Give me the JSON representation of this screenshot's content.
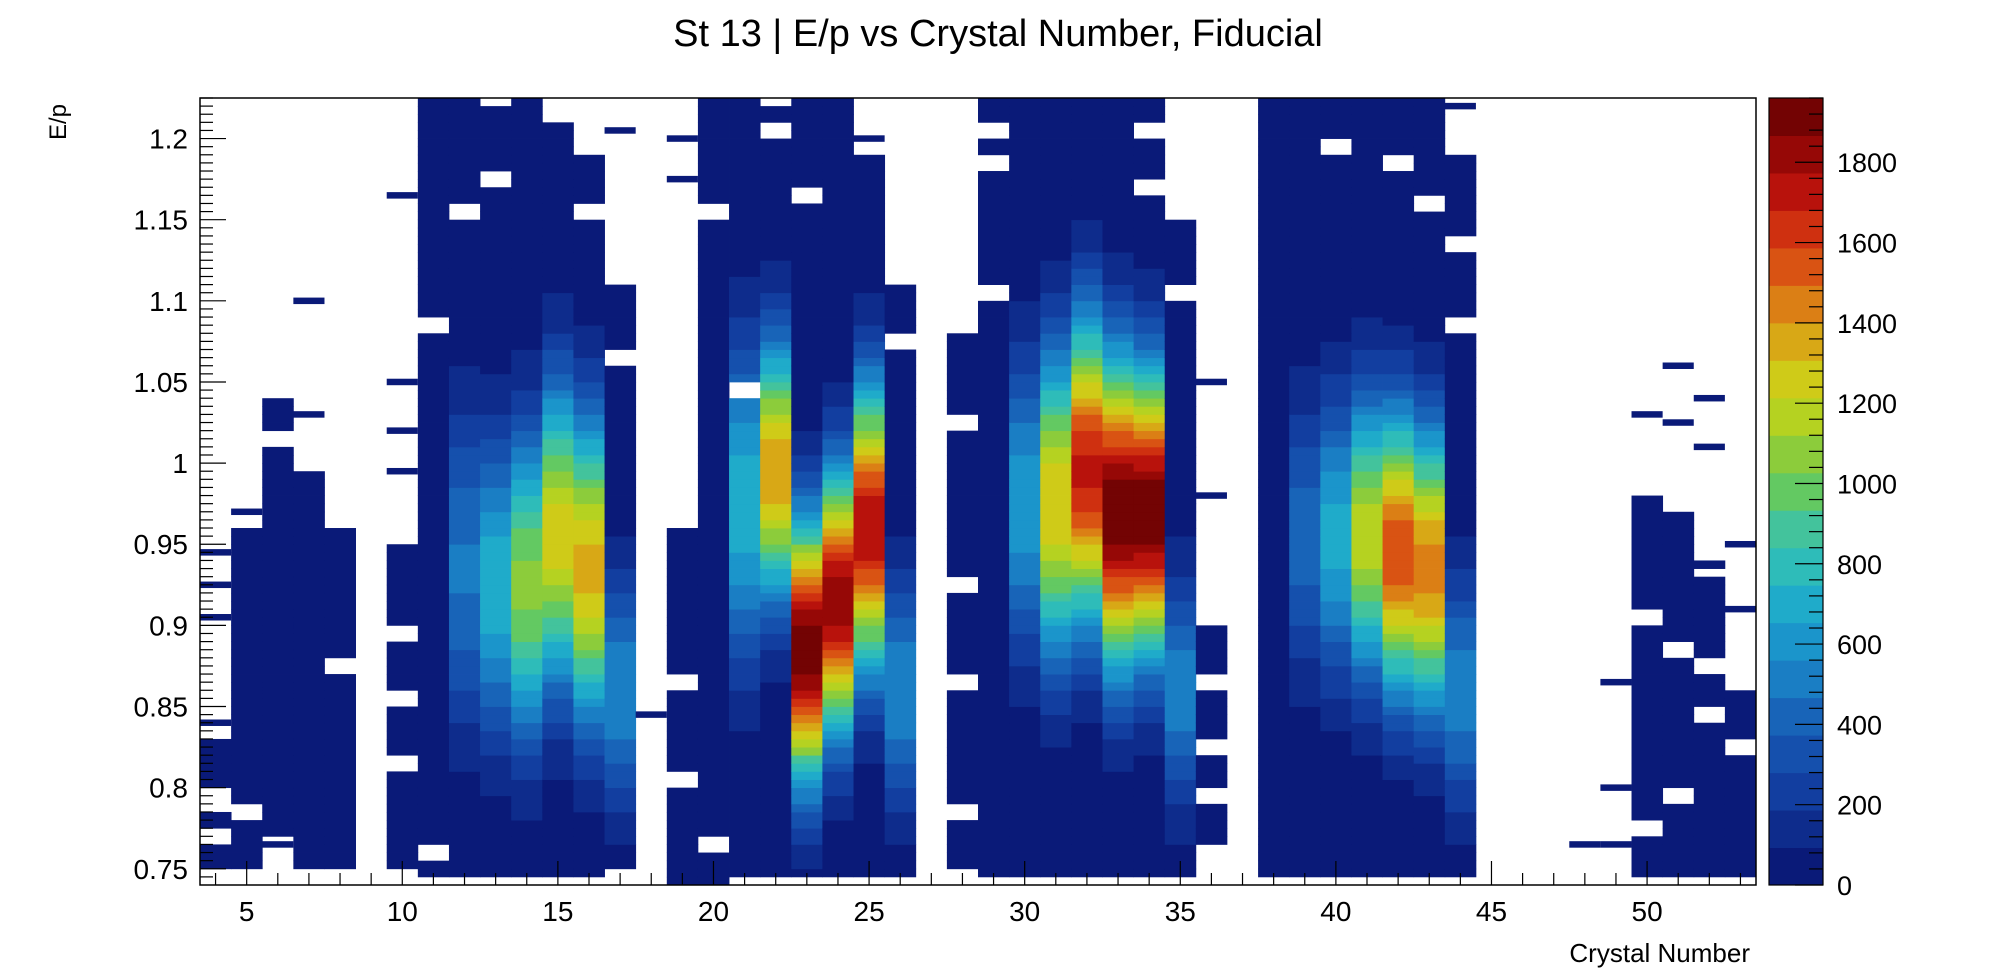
{
  "chart_data": {
    "type": "heatmap",
    "title": "St 13 | E/p vs Crystal Number, Fiducial",
    "xlabel": "Crystal Number",
    "ylabel": "E/p",
    "xlim": [
      3.5,
      53.5
    ],
    "ylim": [
      0.74,
      1.225
    ],
    "x_ticks": [
      5,
      10,
      15,
      20,
      25,
      30,
      35,
      40,
      45,
      50
    ],
    "y_ticks": [
      0.75,
      0.8,
      0.85,
      0.9,
      0.95,
      1,
      1.05,
      1.1,
      1.15,
      1.2
    ],
    "y_tick_labels": [
      "0.75",
      "0.8",
      "0.85",
      "0.9",
      "0.95",
      "1",
      "1.05",
      "1.1",
      "1.15",
      "1.2"
    ],
    "z_range": [
      0,
      1960
    ],
    "z_ticks": [
      0,
      200,
      400,
      600,
      800,
      1000,
      1200,
      1400,
      1600,
      1800
    ],
    "palette": [
      "#0a1a78",
      "#0e2c8c",
      "#123ea0",
      "#1550ad",
      "#1864b8",
      "#1a7ec4",
      "#1b95cb",
      "#1fabca",
      "#2ebcb9",
      "#43c39c",
      "#63c962",
      "#8ccc3b",
      "#b5d221",
      "#cfcb18",
      "#d8a816",
      "#db7f15",
      "#d95313",
      "#cf3010",
      "#b8120c",
      "#960806",
      "#730303"
    ],
    "grid": false,
    "legend": "color scale on right",
    "columns": [
      {
        "x": 4,
        "lo": 0.75,
        "hi": 0.83,
        "gaps": [
          [
            0.785,
            0.8
          ],
          [
            0.765,
            0.775
          ]
        ],
        "ticks": [
          0.84,
          0.905,
          0.925,
          0.945
        ]
      },
      {
        "x": 5,
        "lo": 0.75,
        "hi": 0.96,
        "gaps": [
          [
            0.78,
            0.79
          ]
        ],
        "ticks": [
          0.97
        ]
      },
      {
        "x": 6,
        "lo": 0.77,
        "hi": 1.04,
        "gaps": [
          [
            1.01,
            1.02
          ]
        ],
        "ticks": [
          0.765,
          0.86
        ]
      },
      {
        "x": 7,
        "lo": 0.75,
        "hi": 0.995,
        "gaps": [],
        "ticks": [
          1.1,
          1.03,
          0.9
        ]
      },
      {
        "x": 8,
        "lo": 0.75,
        "hi": 0.96,
        "gaps": [
          [
            0.87,
            0.88
          ]
        ],
        "ticks": []
      },
      {
        "x": 9,
        "lo": 0,
        "hi": 0,
        "gaps": [],
        "ticks": []
      },
      {
        "x": 10,
        "lo": 0.75,
        "hi": 0.95,
        "gaps": [
          [
            0.81,
            0.82
          ],
          [
            0.85,
            0.86
          ],
          [
            0.89,
            0.9
          ]
        ],
        "ticks": [
          1.165,
          1.05,
          1.02,
          0.995
        ]
      },
      {
        "x": 11,
        "lo": 0.745,
        "hi": 1.225,
        "gaps": [
          [
            1.08,
            1.09
          ],
          [
            0.755,
            0.765
          ]
        ],
        "ticks": []
      },
      {
        "x": 12,
        "lo": 0.745,
        "hi": 1.225,
        "gaps": [
          [
            1.15,
            1.16
          ]
        ],
        "ticks": []
      },
      {
        "x": 13,
        "lo": 0.745,
        "hi": 1.22,
        "gaps": [
          [
            1.17,
            1.18
          ]
        ],
        "ticks": []
      },
      {
        "x": 14,
        "lo": 0.745,
        "hi": 1.225,
        "gaps": [],
        "ticks": []
      },
      {
        "x": 15,
        "lo": 0.745,
        "hi": 1.21,
        "gaps": [],
        "ticks": []
      },
      {
        "x": 16,
        "lo": 0.745,
        "hi": 1.19,
        "gaps": [
          [
            1.15,
            1.16
          ]
        ],
        "ticks": []
      },
      {
        "x": 17,
        "lo": 0.75,
        "hi": 1.11,
        "gaps": [
          [
            1.06,
            1.07
          ]
        ],
        "ticks": [
          1.205
        ]
      },
      {
        "x": 18,
        "lo": 0,
        "hi": 0,
        "gaps": [],
        "ticks": [
          0.845
        ]
      },
      {
        "x": 19,
        "lo": 0.74,
        "hi": 0.96,
        "gaps": [
          [
            0.8,
            0.81
          ],
          [
            0.86,
            0.87
          ]
        ],
        "ticks": [
          1.2,
          1.175
        ]
      },
      {
        "x": 20,
        "lo": 0.74,
        "hi": 1.225,
        "gaps": [
          [
            1.15,
            1.16
          ],
          [
            0.76,
            0.77
          ]
        ],
        "ticks": []
      },
      {
        "x": 21,
        "lo": 0.745,
        "hi": 1.225,
        "gaps": [
          [
            1.04,
            1.05
          ]
        ],
        "ticks": []
      },
      {
        "x": 22,
        "lo": 0.745,
        "hi": 1.22,
        "gaps": [
          [
            1.2,
            1.21
          ]
        ],
        "ticks": []
      },
      {
        "x": 23,
        "lo": 0.745,
        "hi": 1.225,
        "gaps": [
          [
            1.16,
            1.17
          ]
        ],
        "ticks": []
      },
      {
        "x": 24,
        "lo": 0.745,
        "hi": 1.225,
        "gaps": [],
        "ticks": []
      },
      {
        "x": 25,
        "lo": 0.745,
        "hi": 1.19,
        "gaps": [],
        "ticks": [
          1.2
        ]
      },
      {
        "x": 26,
        "lo": 0.745,
        "hi": 1.11,
        "gaps": [
          [
            1.07,
            1.08
          ]
        ],
        "ticks": []
      },
      {
        "x": 27,
        "lo": 0,
        "hi": 0,
        "gaps": [],
        "ticks": []
      },
      {
        "x": 28,
        "lo": 0.75,
        "hi": 1.08,
        "gaps": [
          [
            0.78,
            0.79
          ],
          [
            0.86,
            0.87
          ],
          [
            0.92,
            0.93
          ],
          [
            1.02,
            1.03
          ]
        ],
        "ticks": []
      },
      {
        "x": 29,
        "lo": 0.745,
        "hi": 1.225,
        "gaps": [
          [
            1.2,
            1.21
          ],
          [
            1.18,
            1.19
          ],
          [
            1.1,
            1.11
          ]
        ],
        "ticks": []
      },
      {
        "x": 30,
        "lo": 0.745,
        "hi": 1.225,
        "gaps": [],
        "ticks": []
      },
      {
        "x": 31,
        "lo": 0.745,
        "hi": 1.225,
        "gaps": [],
        "ticks": []
      },
      {
        "x": 32,
        "lo": 0.745,
        "hi": 1.225,
        "gaps": [],
        "ticks": []
      },
      {
        "x": 33,
        "lo": 0.745,
        "hi": 1.225,
        "gaps": [],
        "ticks": []
      },
      {
        "x": 34,
        "lo": 0.745,
        "hi": 1.225,
        "gaps": [
          [
            1.2,
            1.21
          ],
          [
            1.165,
            1.175
          ]
        ],
        "ticks": []
      },
      {
        "x": 35,
        "lo": 0.745,
        "hi": 1.15,
        "gaps": [
          [
            1.1,
            1.11
          ]
        ],
        "ticks": []
      },
      {
        "x": 36,
        "lo": 0.765,
        "hi": 0.9,
        "gaps": [
          [
            0.79,
            0.8
          ],
          [
            0.82,
            0.83
          ],
          [
            0.86,
            0.87
          ]
        ],
        "ticks": [
          1.05,
          0.98
        ]
      },
      {
        "x": 37,
        "lo": 0,
        "hi": 0,
        "gaps": [],
        "ticks": []
      },
      {
        "x": 38,
        "lo": 0.745,
        "hi": 1.225,
        "gaps": [],
        "ticks": []
      },
      {
        "x": 39,
        "lo": 0.745,
        "hi": 1.225,
        "gaps": [],
        "ticks": []
      },
      {
        "x": 40,
        "lo": 0.745,
        "hi": 1.225,
        "gaps": [
          [
            1.19,
            1.2
          ]
        ],
        "ticks": []
      },
      {
        "x": 41,
        "lo": 0.745,
        "hi": 1.225,
        "gaps": [],
        "ticks": []
      },
      {
        "x": 42,
        "lo": 0.745,
        "hi": 1.225,
        "gaps": [
          [
            1.18,
            1.19
          ]
        ],
        "ticks": []
      },
      {
        "x": 43,
        "lo": 0.745,
        "hi": 1.225,
        "gaps": [
          [
            1.155,
            1.165
          ]
        ],
        "ticks": []
      },
      {
        "x": 44,
        "lo": 0.745,
        "hi": 1.19,
        "gaps": [
          [
            1.13,
            1.14
          ],
          [
            1.08,
            1.09
          ]
        ],
        "ticks": [
          1.22
        ]
      },
      {
        "x": 45,
        "lo": 0,
        "hi": 0,
        "gaps": [],
        "ticks": []
      },
      {
        "x": 46,
        "lo": 0,
        "hi": 0,
        "gaps": [],
        "ticks": []
      },
      {
        "x": 47,
        "lo": 0,
        "hi": 0,
        "gaps": [],
        "ticks": []
      },
      {
        "x": 48,
        "lo": 0,
        "hi": 0,
        "gaps": [],
        "ticks": [
          0.765
        ]
      },
      {
        "x": 49,
        "lo": 0,
        "hi": 0,
        "gaps": [],
        "ticks": [
          0.865,
          0.8,
          0.765
        ]
      },
      {
        "x": 50,
        "lo": 0.745,
        "hi": 0.98,
        "gaps": [
          [
            0.77,
            0.78
          ],
          [
            0.9,
            0.91
          ]
        ],
        "ticks": [
          1.03
        ]
      },
      {
        "x": 51,
        "lo": 0.745,
        "hi": 0.97,
        "gaps": [
          [
            0.79,
            0.8
          ],
          [
            0.88,
            0.89
          ]
        ],
        "ticks": [
          1.06,
          1.025
        ]
      },
      {
        "x": 52,
        "lo": 0.745,
        "hi": 0.94,
        "gaps": [
          [
            0.84,
            0.85
          ],
          [
            0.87,
            0.88
          ],
          [
            0.93,
            0.935
          ]
        ],
        "ticks": [
          1.04,
          1.01
        ]
      },
      {
        "x": 53,
        "lo": 0.745,
        "hi": 0.86,
        "gaps": [
          [
            0.82,
            0.83
          ]
        ],
        "ticks": [
          0.95,
          0.91
        ]
      }
    ],
    "peaks": [
      {
        "x": 12,
        "y": 0.935,
        "sy": 0.07,
        "amp": 480
      },
      {
        "x": 13,
        "y": 0.925,
        "sy": 0.065,
        "amp": 720
      },
      {
        "x": 14,
        "y": 0.925,
        "sy": 0.065,
        "amp": 1060
      },
      {
        "x": 15,
        "y": 0.955,
        "sy": 0.065,
        "amp": 1260
      },
      {
        "x": 16,
        "y": 0.935,
        "sy": 0.065,
        "amp": 1350
      },
      {
        "x": 17,
        "y": 0.86,
        "sy": 0.05,
        "amp": 560
      },
      {
        "x": 21,
        "y": 0.975,
        "sy": 0.07,
        "amp": 720
      },
      {
        "x": 22,
        "y": 0.995,
        "sy": 0.055,
        "amp": 1400
      },
      {
        "x": 23,
        "y": 0.885,
        "sy": 0.055,
        "amp": 1960
      },
      {
        "x": 24,
        "y": 0.915,
        "sy": 0.055,
        "amp": 1860
      },
      {
        "x": 25,
        "y": 0.96,
        "sy": 0.06,
        "amp": 1760
      },
      {
        "x": 26,
        "y": 0.86,
        "sy": 0.05,
        "amp": 560
      },
      {
        "x": 30,
        "y": 0.975,
        "sy": 0.065,
        "amp": 620
      },
      {
        "x": 31,
        "y": 0.975,
        "sy": 0.065,
        "amp": 1300
      },
      {
        "x": 32,
        "y": 0.995,
        "sy": 0.065,
        "amp": 1700
      },
      {
        "x": 33,
        "y": 0.97,
        "sy": 0.065,
        "amp": 1960
      },
      {
        "x": 34,
        "y": 0.97,
        "sy": 0.06,
        "amp": 1950
      },
      {
        "x": 35,
        "y": 0.86,
        "sy": 0.05,
        "amp": 520
      },
      {
        "x": 39,
        "y": 0.955,
        "sy": 0.06,
        "amp": 420
      },
      {
        "x": 40,
        "y": 0.955,
        "sy": 0.06,
        "amp": 700
      },
      {
        "x": 41,
        "y": 0.955,
        "sy": 0.06,
        "amp": 1180
      },
      {
        "x": 42,
        "y": 0.945,
        "sy": 0.06,
        "amp": 1560
      },
      {
        "x": 43,
        "y": 0.935,
        "sy": 0.06,
        "amp": 1460
      },
      {
        "x": 44,
        "y": 0.86,
        "sy": 0.05,
        "amp": 540
      }
    ]
  }
}
